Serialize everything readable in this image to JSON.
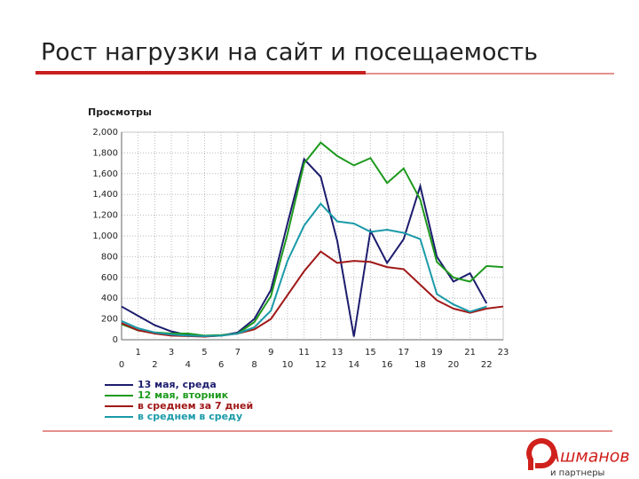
{
  "chart_data": {
    "type": "line",
    "title": "Рост нагрузки на сайт и посещаемость",
    "y_label": "Просмотры",
    "x": [
      0,
      1,
      2,
      3,
      4,
      5,
      6,
      7,
      8,
      9,
      10,
      11,
      12,
      13,
      14,
      15,
      16,
      17,
      18,
      19,
      20,
      21,
      22,
      23
    ],
    "xlim": [
      0,
      23
    ],
    "xticks": [
      0,
      1,
      2,
      3,
      4,
      5,
      6,
      7,
      8,
      9,
      10,
      11,
      12,
      13,
      14,
      15,
      16,
      17,
      18,
      19,
      20,
      21,
      22,
      23
    ],
    "ylim": [
      0,
      2000
    ],
    "yticks": [
      0,
      200,
      400,
      600,
      800,
      {
        "value": 1000,
        "label": "1,000"
      },
      {
        "value": 1200,
        "label": "1,200"
      },
      {
        "value": 1400,
        "label": "1,400"
      },
      {
        "value": 1600,
        "label": "1,600"
      },
      {
        "value": 1800,
        "label": "1,800"
      },
      {
        "value": 2000,
        "label": "2,000"
      }
    ],
    "grid": true,
    "series": [
      {
        "name": "13 мая, среда",
        "color": "#1c1c6e",
        "values": [
          320,
          230,
          140,
          80,
          45,
          35,
          40,
          70,
          200,
          480,
          1120,
          1740,
          1570,
          950,
          30,
          1050,
          740,
          970,
          1480,
          800,
          560,
          640,
          350,
          null
        ]
      },
      {
        "name": "12 мая, вторник",
        "color": "#1e9a1e",
        "values": [
          150,
          90,
          70,
          60,
          60,
          40,
          45,
          60,
          170,
          420,
          1020,
          1700,
          1900,
          1770,
          1680,
          1750,
          1510,
          1650,
          1350,
          750,
          600,
          560,
          710,
          700
        ]
      },
      {
        "name": "в среднем за 7 дней",
        "color": "#a01818",
        "values": [
          160,
          90,
          60,
          40,
          35,
          30,
          40,
          60,
          100,
          200,
          430,
          660,
          850,
          740,
          760,
          750,
          700,
          680,
          530,
          380,
          300,
          260,
          300,
          320
        ]
      },
      {
        "name": "в среднем в среду",
        "color": "#1a9aa8",
        "values": [
          180,
          110,
          70,
          50,
          40,
          35,
          40,
          60,
          120,
          280,
          760,
          1100,
          1310,
          1140,
          1120,
          1040,
          1060,
          1030,
          970,
          440,
          340,
          270,
          320,
          null
        ]
      }
    ]
  },
  "logo": {
    "name": "Ашманов",
    "tagline": "и партнеры"
  }
}
